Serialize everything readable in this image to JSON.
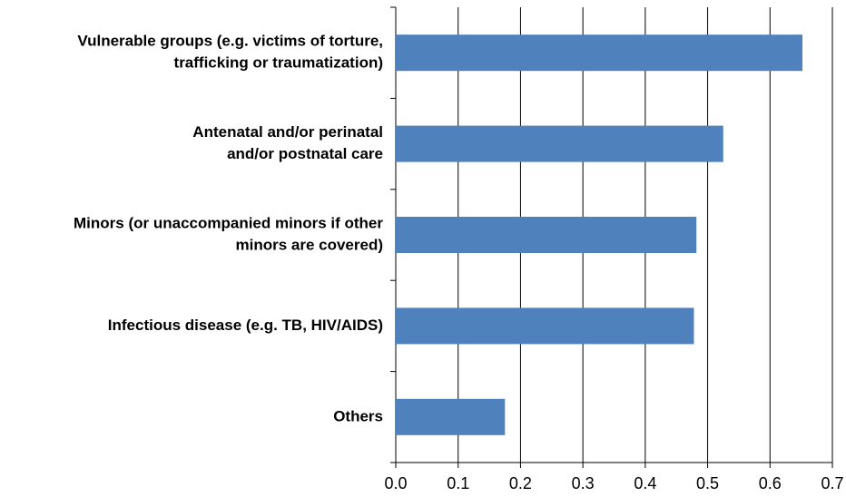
{
  "chart_data": {
    "type": "barh",
    "categories": [
      [
        "Vulnerable groups (e.g. victims of torture,",
        "trafficking or traumatization)"
      ],
      [
        "Antenatal and/or perinatal",
        "and/or postnatal care"
      ],
      [
        "Minors (or unaccompanied minors if other",
        "minors are covered)"
      ],
      [
        "Infectious disease (e.g. TB, HIV/AIDS)"
      ],
      [
        "Others"
      ]
    ],
    "values": [
      0.652,
      0.525,
      0.482,
      0.478,
      0.175
    ],
    "color": "#4f81bd",
    "xlim": [
      0,
      0.7
    ],
    "xticks": [
      {
        "value": 0,
        "label": "0.0"
      },
      0.1,
      0.2,
      0.3,
      0.4,
      0.5,
      0.6,
      0.7
    ],
    "grid": true
  }
}
